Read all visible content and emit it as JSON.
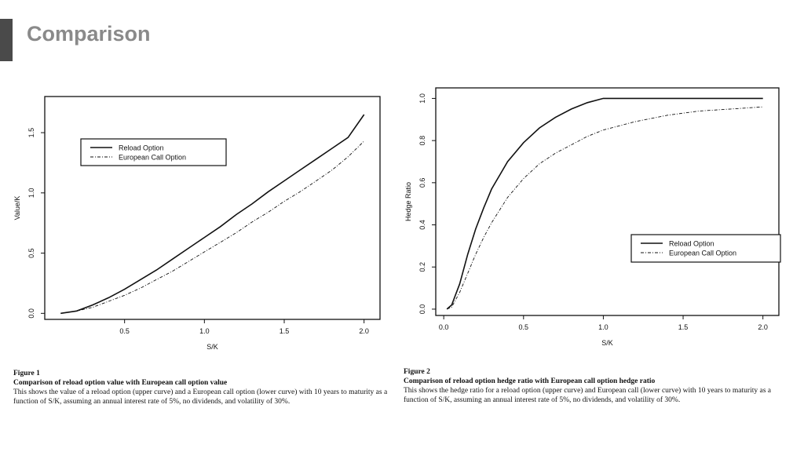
{
  "slide": {
    "title": "Comparison"
  },
  "chart_data": [
    {
      "type": "line",
      "xlabel": "S/K",
      "ylabel": "Value/K",
      "xlim": [
        0.0,
        2.1
      ],
      "ylim": [
        -0.05,
        1.8
      ],
      "xticks": [
        "0.5",
        "1.0",
        "1.5",
        "2.0"
      ],
      "xtick_values": [
        0.5,
        1.0,
        1.5,
        2.0
      ],
      "yticks": [
        "0.0",
        "0.5",
        "1.0",
        "1.5"
      ],
      "ytick_values": [
        0.0,
        0.5,
        1.0,
        1.5
      ],
      "legend": {
        "position": "top-left",
        "entries": [
          "Reload Option",
          "European Call Option"
        ]
      },
      "series": [
        {
          "name": "Reload Option",
          "style": "solid",
          "x": [
            0.1,
            0.2,
            0.3,
            0.4,
            0.5,
            0.6,
            0.7,
            0.8,
            0.9,
            1.0,
            1.1,
            1.2,
            1.3,
            1.4,
            1.5,
            1.6,
            1.7,
            1.8,
            1.9,
            2.0
          ],
          "y": [
            0.0,
            0.02,
            0.07,
            0.13,
            0.2,
            0.28,
            0.36,
            0.45,
            0.54,
            0.63,
            0.72,
            0.82,
            0.91,
            1.01,
            1.1,
            1.19,
            1.28,
            1.37,
            1.46,
            1.65
          ]
        },
        {
          "name": "European Call Option",
          "style": "dashdot",
          "x": [
            0.1,
            0.2,
            0.3,
            0.4,
            0.5,
            0.6,
            0.7,
            0.8,
            0.9,
            1.0,
            1.1,
            1.2,
            1.3,
            1.4,
            1.5,
            1.6,
            1.7,
            1.8,
            1.9,
            2.0
          ],
          "y": [
            0.0,
            0.02,
            0.05,
            0.1,
            0.15,
            0.21,
            0.28,
            0.35,
            0.43,
            0.51,
            0.59,
            0.67,
            0.76,
            0.84,
            0.93,
            1.01,
            1.1,
            1.19,
            1.3,
            1.43
          ]
        }
      ]
    },
    {
      "type": "line",
      "xlabel": "S/K",
      "ylabel": "Hedge Ratio",
      "xlim": [
        -0.05,
        2.1
      ],
      "ylim": [
        -0.03,
        1.05
      ],
      "xticks": [
        "0.0",
        "0.5",
        "1.0",
        "1.5",
        "2.0"
      ],
      "xtick_values": [
        0.0,
        0.5,
        1.0,
        1.5,
        2.0
      ],
      "yticks": [
        "0.0",
        "0.2",
        "0.4",
        "0.6",
        "0.8",
        "1.0"
      ],
      "ytick_values": [
        0.0,
        0.2,
        0.4,
        0.6,
        0.8,
        1.0
      ],
      "legend": {
        "position": "lower-right",
        "entries": [
          "Reload Option",
          "European Call Option"
        ]
      },
      "series": [
        {
          "name": "Reload Option",
          "style": "solid",
          "x": [
            0.02,
            0.05,
            0.1,
            0.15,
            0.2,
            0.25,
            0.3,
            0.4,
            0.5,
            0.6,
            0.7,
            0.8,
            0.9,
            1.0,
            1.2,
            1.4,
            1.6,
            1.8,
            2.0
          ],
          "y": [
            0.0,
            0.02,
            0.12,
            0.26,
            0.38,
            0.48,
            0.57,
            0.7,
            0.79,
            0.86,
            0.91,
            0.95,
            0.98,
            1.0,
            1.0,
            1.0,
            1.0,
            1.0,
            1.0
          ]
        },
        {
          "name": "European Call Option",
          "style": "dashdot",
          "x": [
            0.02,
            0.05,
            0.1,
            0.15,
            0.2,
            0.25,
            0.3,
            0.4,
            0.5,
            0.6,
            0.7,
            0.8,
            0.9,
            1.0,
            1.2,
            1.4,
            1.6,
            1.8,
            2.0
          ],
          "y": [
            0.0,
            0.01,
            0.08,
            0.17,
            0.26,
            0.34,
            0.41,
            0.53,
            0.62,
            0.69,
            0.74,
            0.78,
            0.82,
            0.85,
            0.89,
            0.92,
            0.94,
            0.95,
            0.96
          ]
        }
      ]
    }
  ],
  "captions": [
    {
      "num": "Figure 1",
      "title": "Comparison of reload option value with European call option value",
      "body": "This shows the value of a reload option (upper curve) and a European call option (lower curve) with 10 years to maturity as a function of S/K, assuming an annual interest rate of 5%, no dividends, and volatility of 30%."
    },
    {
      "num": "Figure 2",
      "title": "Comparison of reload option hedge ratio with European call option hedge ratio",
      "body": "This shows the hedge ratio for a reload option (upper curve) and European call (lower curve) with 10 years to maturity as a function of S/K, assuming an annual interest rate of 5%, no dividends, and volatility of 30%."
    }
  ]
}
